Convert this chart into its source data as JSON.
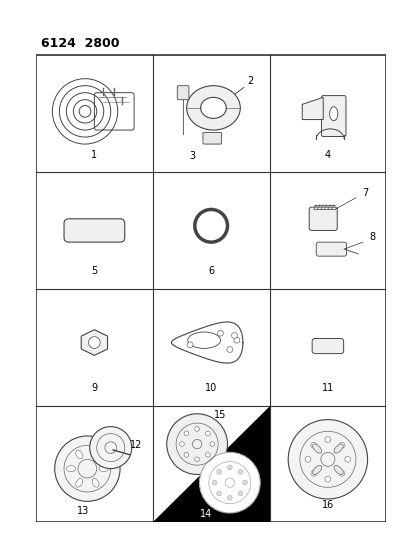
{
  "title": "6124  2800",
  "background_color": "#ffffff",
  "fig_width": 4.14,
  "fig_height": 5.33,
  "title_fontsize": 9,
  "label_fontsize": 7,
  "grid_color": "#333333",
  "part_color": "#444444",
  "detail_color": "#666666"
}
